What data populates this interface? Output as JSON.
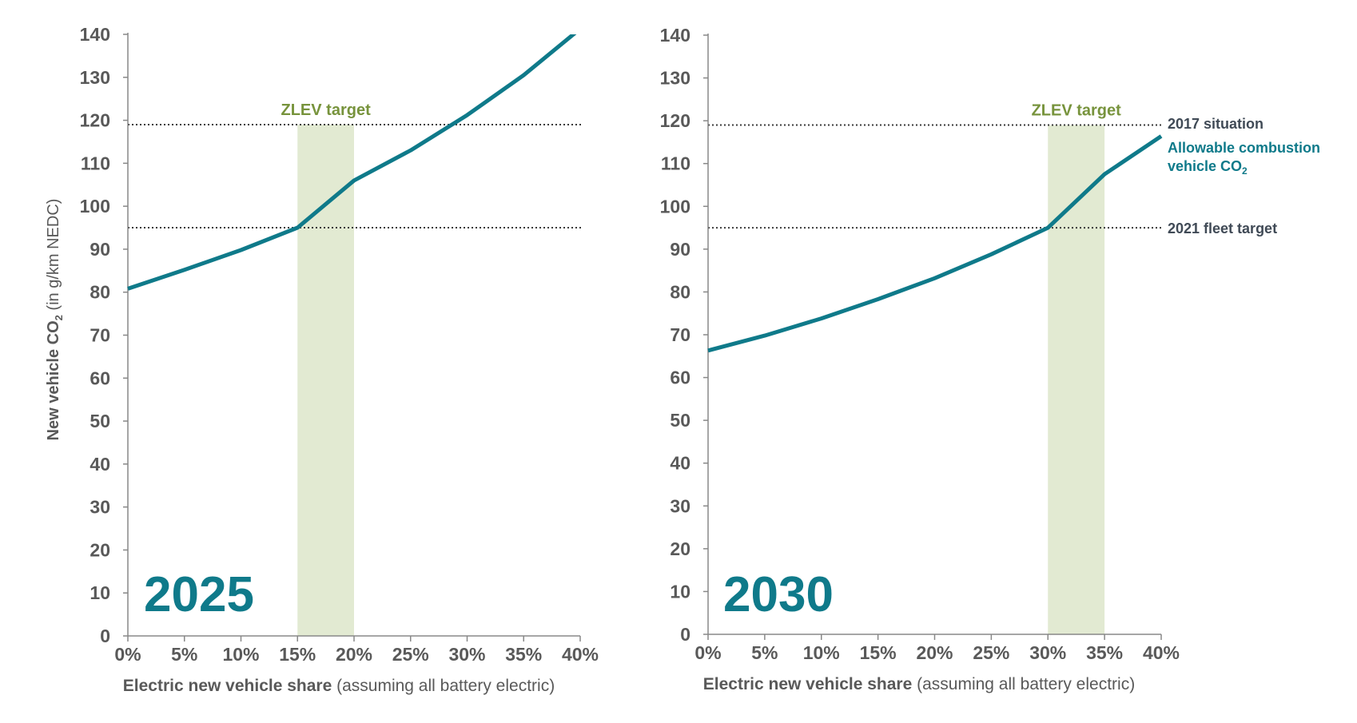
{
  "colors": {
    "line": "#0f7a8a",
    "band": "#e2ead2",
    "zlev_text": "#77933c",
    "axis": "#888888",
    "reference": "#3a3a3a",
    "tick_text": "#595959",
    "annotation_dark": "#404a56"
  },
  "y_axis_label": {
    "bold": "New vehicle CO",
    "sub": "2",
    "light": " (in g/km NEDC)"
  },
  "x_axis_label": {
    "bold": "Electric new vehicle share",
    "light": " (assuming all battery electric)"
  },
  "annotations": {
    "situation_2017": "2017 situation",
    "allowable_line1": "Allowable combustion",
    "allowable_line2": "vehicle CO",
    "allowable_sub": "2",
    "fleet_target_2021": "2021 fleet target"
  },
  "chart_data": [
    {
      "type": "line",
      "panel_label": "2025",
      "band_label": "ZLEV target",
      "band": [
        15,
        20
      ],
      "xlim": [
        0,
        40
      ],
      "ylim": [
        0,
        140
      ],
      "x_ticks": [
        0,
        5,
        10,
        15,
        20,
        25,
        30,
        35,
        40
      ],
      "x_tick_labels": [
        "0%",
        "5%",
        "10%",
        "15%",
        "20%",
        "25%",
        "30%",
        "35%",
        "40%"
      ],
      "y_ticks": [
        0,
        10,
        20,
        30,
        40,
        50,
        60,
        70,
        80,
        90,
        100,
        110,
        120,
        130,
        140
      ],
      "reference_lines": [
        119,
        95
      ],
      "x": [
        0,
        5,
        10,
        15,
        20,
        25,
        30,
        35,
        40
      ],
      "y": [
        80.8,
        85.2,
        89.8,
        95,
        106,
        113,
        121.2,
        130.5,
        141.3
      ]
    },
    {
      "type": "line",
      "panel_label": "2030",
      "band_label": "ZLEV target",
      "band": [
        30,
        35
      ],
      "xlim": [
        0,
        40
      ],
      "ylim": [
        0,
        140
      ],
      "x_ticks": [
        0,
        5,
        10,
        15,
        20,
        25,
        30,
        35,
        40
      ],
      "x_tick_labels": [
        "0%",
        "5%",
        "10%",
        "15%",
        "20%",
        "25%",
        "30%",
        "35%",
        "40%"
      ],
      "y_ticks": [
        0,
        10,
        20,
        30,
        40,
        50,
        60,
        70,
        80,
        90,
        100,
        110,
        120,
        130,
        140
      ],
      "reference_lines": [
        119,
        95
      ],
      "x": [
        0,
        5,
        10,
        15,
        20,
        25,
        30,
        35,
        40
      ],
      "y": [
        66.3,
        69.8,
        73.8,
        78.3,
        83.2,
        88.8,
        95,
        107.5,
        116.4
      ]
    }
  ]
}
